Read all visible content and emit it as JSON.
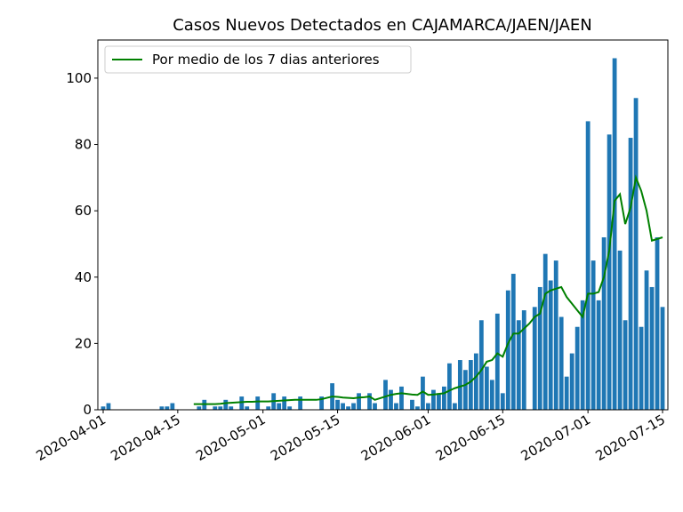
{
  "chart_data": {
    "type": "bar",
    "title": "Casos Nuevos Detectados en CAJAMARCA/JAEN/JAEN",
    "x": [
      "2020-04-01",
      "2020-04-02",
      "2020-04-03",
      "2020-04-04",
      "2020-04-05",
      "2020-04-06",
      "2020-04-07",
      "2020-04-08",
      "2020-04-09",
      "2020-04-10",
      "2020-04-11",
      "2020-04-12",
      "2020-04-13",
      "2020-04-14",
      "2020-04-15",
      "2020-04-16",
      "2020-04-17",
      "2020-04-18",
      "2020-04-19",
      "2020-04-20",
      "2020-04-21",
      "2020-04-22",
      "2020-04-23",
      "2020-04-24",
      "2020-04-25",
      "2020-04-26",
      "2020-04-27",
      "2020-04-28",
      "2020-04-29",
      "2020-04-30",
      "2020-05-01",
      "2020-05-02",
      "2020-05-03",
      "2020-05-04",
      "2020-05-05",
      "2020-05-06",
      "2020-05-07",
      "2020-05-08",
      "2020-05-09",
      "2020-05-10",
      "2020-05-11",
      "2020-05-12",
      "2020-05-13",
      "2020-05-14",
      "2020-05-15",
      "2020-05-16",
      "2020-05-17",
      "2020-05-18",
      "2020-05-19",
      "2020-05-20",
      "2020-05-21",
      "2020-05-22",
      "2020-05-23",
      "2020-05-24",
      "2020-05-25",
      "2020-05-26",
      "2020-05-27",
      "2020-05-28",
      "2020-05-29",
      "2020-05-30",
      "2020-05-31",
      "2020-06-01",
      "2020-06-02",
      "2020-06-03",
      "2020-06-04",
      "2020-06-05",
      "2020-06-06",
      "2020-06-07",
      "2020-06-08",
      "2020-06-09",
      "2020-06-10",
      "2020-06-11",
      "2020-06-12",
      "2020-06-13",
      "2020-06-14",
      "2020-06-15",
      "2020-06-16",
      "2020-06-17",
      "2020-06-18",
      "2020-06-19",
      "2020-06-20",
      "2020-06-21",
      "2020-06-22",
      "2020-06-23",
      "2020-06-24",
      "2020-06-25",
      "2020-06-26",
      "2020-06-27",
      "2020-06-28",
      "2020-06-29",
      "2020-06-30",
      "2020-07-01",
      "2020-07-02",
      "2020-07-03",
      "2020-07-04",
      "2020-07-05",
      "2020-07-06",
      "2020-07-07",
      "2020-07-08",
      "2020-07-09",
      "2020-07-10",
      "2020-07-11",
      "2020-07-12",
      "2020-07-13",
      "2020-07-14",
      "2020-07-15"
    ],
    "values": [
      1,
      2,
      0,
      0,
      0,
      0,
      0,
      0,
      0,
      0,
      0,
      1,
      1,
      2,
      0,
      0,
      0,
      0,
      1,
      3,
      0,
      1,
      1,
      3,
      1,
      0,
      4,
      1,
      0,
      4,
      0,
      1,
      5,
      2,
      4,
      1,
      0,
      4,
      0,
      0,
      0,
      4,
      0,
      8,
      3,
      2,
      1,
      2,
      5,
      0,
      5,
      2,
      0,
      9,
      6,
      2,
      7,
      0,
      3,
      1,
      10,
      2,
      6,
      5,
      7,
      14,
      2,
      15,
      12,
      15,
      17,
      27,
      13,
      9,
      29,
      5,
      36,
      41,
      27,
      30,
      0,
      31,
      37,
      47,
      39,
      45,
      28,
      10,
      17,
      25,
      33,
      87,
      45,
      33,
      52,
      83,
      106,
      48,
      27,
      82,
      94,
      25,
      42,
      37,
      52,
      31
    ],
    "color": "#1f77b4",
    "series": [
      {
        "name": "Por medio de los 7 dias anteriores",
        "color": "#008000",
        "type": "line",
        "values": [
          null,
          null,
          null,
          null,
          null,
          null,
          null,
          null,
          null,
          null,
          null,
          null,
          null,
          null,
          null,
          null,
          null,
          1.7,
          1.7,
          1.7,
          1.7,
          1.7,
          1.8,
          2,
          2.1,
          2.2,
          2.3,
          2.4,
          2.4,
          2.5,
          2.5,
          2.5,
          2.6,
          2.7,
          2.8,
          2.9,
          3,
          3,
          3,
          3,
          3,
          3.2,
          3.6,
          4,
          3.9,
          3.7,
          3.6,
          3.5,
          3.7,
          3.8,
          4,
          3,
          3.5,
          4,
          4.5,
          4.8,
          5,
          4.8,
          4.6,
          4.5,
          5.5,
          4.5,
          4.6,
          4.8,
          5,
          5.8,
          6.5,
          7,
          7.5,
          8.5,
          10,
          12,
          14.5,
          15,
          17,
          16,
          20,
          23,
          23,
          24.5,
          26,
          28,
          29,
          35,
          36,
          36.5,
          37,
          34,
          32,
          30,
          28,
          35,
          35,
          35.5,
          40,
          48,
          63,
          65,
          56,
          61,
          70,
          66,
          60,
          51,
          51.5,
          52
        ]
      }
    ],
    "xlim": [
      "2020-03-31",
      "2020-07-16"
    ],
    "xticks": [
      "2020-04-01",
      "2020-04-15",
      "2020-05-01",
      "2020-05-15",
      "2020-06-01",
      "2020-06-15",
      "2020-07-01",
      "2020-07-15"
    ],
    "ylim": [
      0,
      111.5
    ],
    "yticks": [
      0,
      20,
      40,
      60,
      80,
      100
    ],
    "legend": "upper left"
  }
}
